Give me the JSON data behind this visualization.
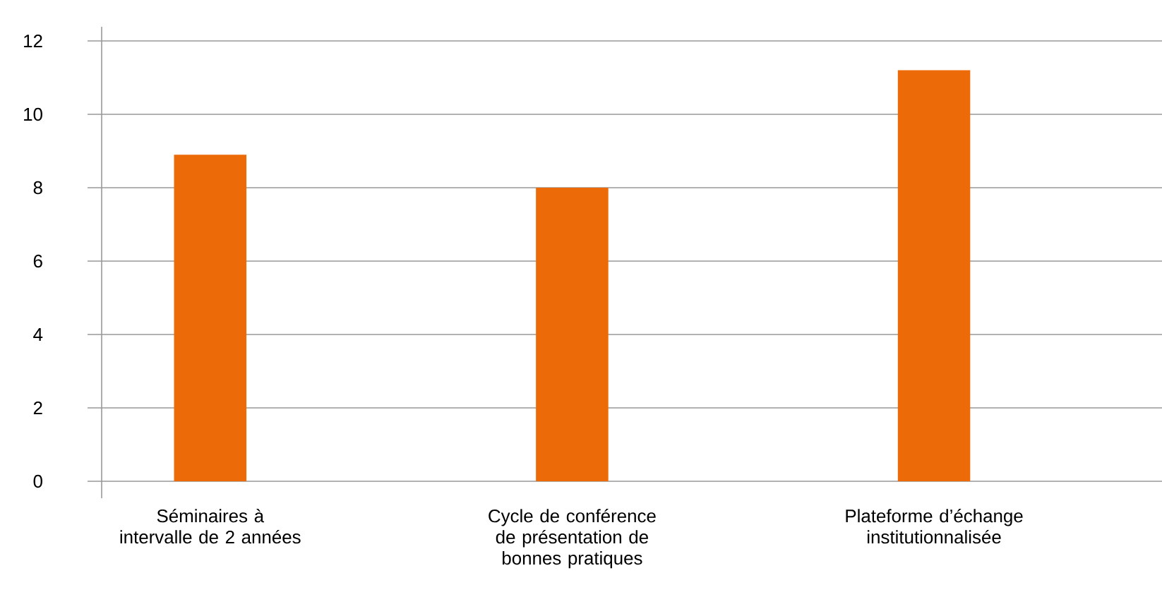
{
  "chart_data": {
    "type": "bar",
    "categories": [
      "Séminaires à intervalle de 2 années",
      "Cycle de conférence de présentation de bonnes pratiques",
      "Plateforme d’échange institutionnalisée"
    ],
    "values": [
      8.9,
      8,
      11.2
    ],
    "color": "#ec6a07",
    "ylim": [
      0,
      12
    ],
    "yticks": [
      0,
      2,
      4,
      6,
      8,
      10,
      12
    ],
    "grid": "y"
  }
}
